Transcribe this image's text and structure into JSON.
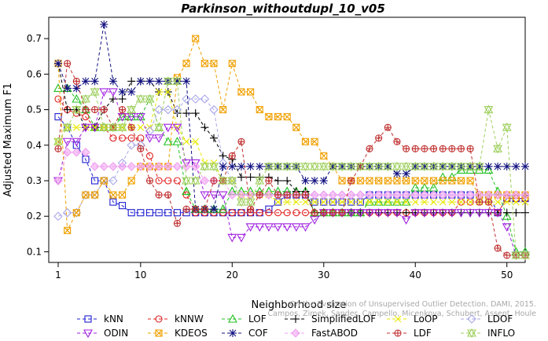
{
  "chart_data": {
    "type": "line",
    "title": "Parkinson_withoutdupl_10_v05",
    "xlabel": "Neighborhood size",
    "ylabel": "Adjusted Maximum F1",
    "xlim": [
      1,
      52
    ],
    "ylim": [
      0.07,
      0.76
    ],
    "xticks": [
      1,
      10,
      20,
      30,
      40,
      50
    ],
    "yticks": [
      0.1,
      0.2,
      0.3,
      0.4,
      0.5,
      0.6,
      0.7
    ],
    "grid": false,
    "legend_position": "bottom",
    "credit": "Campos, Zimek, Sander, Campello, Micenkova, Schubert, Assent, Houle",
    "credit_line2": "On the Evaluation of Unsupervised Outlier Detection. DAMI, 2015.",
    "x": [
      1,
      2,
      3,
      4,
      5,
      6,
      7,
      8,
      9,
      10,
      11,
      12,
      13,
      14,
      15,
      16,
      17,
      18,
      19,
      20,
      21,
      22,
      23,
      24,
      25,
      26,
      27,
      28,
      29,
      30,
      31,
      32,
      33,
      34,
      35,
      36,
      37,
      38,
      39,
      40,
      41,
      42,
      43,
      44,
      45,
      46,
      47,
      48,
      49,
      50,
      51,
      52
    ],
    "series": [
      {
        "name": "kNN",
        "color": "#1f1fd0",
        "marker": "square",
        "dash": "4,3",
        "values": [
          0.48,
          0.45,
          0.4,
          0.36,
          0.3,
          0.3,
          0.24,
          0.23,
          0.21,
          0.21,
          0.21,
          0.21,
          0.21,
          0.21,
          0.21,
          0.21,
          0.21,
          0.21,
          0.21,
          0.21,
          0.21,
          0.21,
          0.21,
          0.22,
          0.24,
          0.26,
          0.26,
          0.26,
          0.24,
          0.24,
          0.24,
          0.24,
          0.24,
          0.24,
          0.26,
          0.26,
          0.26,
          0.26,
          0.26,
          0.26,
          0.26,
          0.26,
          0.26,
          0.26,
          0.26,
          0.26,
          0.26,
          0.26,
          0.21,
          0.25,
          0.25,
          0.25
        ]
      },
      {
        "name": "kNNW",
        "color": "#e02020",
        "marker": "circle",
        "dash": "4,3",
        "values": [
          0.53,
          0.5,
          0.49,
          0.48,
          0.45,
          0.45,
          0.42,
          0.42,
          0.42,
          0.42,
          0.37,
          0.3,
          0.3,
          0.3,
          0.26,
          0.21,
          0.21,
          0.21,
          0.21,
          0.21,
          0.21,
          0.21,
          0.21,
          0.21,
          0.21,
          0.21,
          0.21,
          0.21,
          0.21,
          0.21,
          0.21,
          0.21,
          0.21,
          0.21,
          0.21,
          0.21,
          0.21,
          0.21,
          0.21,
          0.21,
          0.21,
          0.21,
          0.21,
          0.21,
          0.24,
          0.24,
          0.24,
          0.24,
          0.21,
          0.25,
          0.25,
          0.25
        ]
      },
      {
        "name": "LOF",
        "color": "#20c020",
        "marker": "triangle-up",
        "dash": "4,3",
        "values": [
          0.56,
          0.56,
          0.53,
          0.5,
          0.45,
          0.45,
          0.45,
          0.48,
          0.48,
          0.48,
          0.53,
          0.45,
          0.41,
          0.41,
          0.27,
          0.22,
          0.22,
          0.22,
          0.22,
          0.27,
          0.27,
          0.27,
          0.27,
          0.27,
          0.27,
          0.27,
          0.27,
          0.27,
          0.21,
          0.21,
          0.21,
          0.21,
          0.21,
          0.21,
          0.24,
          0.24,
          0.24,
          0.24,
          0.24,
          0.28,
          0.28,
          0.28,
          0.31,
          0.31,
          0.33,
          0.33,
          0.33,
          0.33,
          0.27,
          0.2,
          0.1,
          0.1
        ]
      },
      {
        "name": "SimplifiedLOF",
        "color": "#000000",
        "marker": "plus",
        "dash": "4,3",
        "values": [
          0.63,
          0.5,
          0.5,
          0.45,
          0.45,
          0.5,
          0.53,
          0.53,
          0.58,
          0.58,
          0.58,
          0.55,
          0.55,
          0.49,
          0.49,
          0.49,
          0.45,
          0.42,
          0.37,
          0.36,
          0.31,
          0.31,
          0.31,
          0.31,
          0.3,
          0.3,
          0.27,
          0.27,
          0.21,
          0.21,
          0.21,
          0.21,
          0.21,
          0.21,
          0.21,
          0.21,
          0.21,
          0.21,
          0.21,
          0.21,
          0.21,
          0.21,
          0.21,
          0.21,
          0.21,
          0.21,
          0.21,
          0.21,
          0.21,
          0.21,
          0.21,
          0.21
        ]
      },
      {
        "name": "LoOP",
        "color": "#e8e800",
        "marker": "x",
        "dash": "4,3",
        "values": [
          0.41,
          0.45,
          0.45,
          0.45,
          0.45,
          0.45,
          0.45,
          0.45,
          0.45,
          0.45,
          0.45,
          0.55,
          0.55,
          0.45,
          0.41,
          0.41,
          0.35,
          0.35,
          0.3,
          0.3,
          0.26,
          0.26,
          0.26,
          0.26,
          0.24,
          0.24,
          0.24,
          0.24,
          0.24,
          0.24,
          0.24,
          0.24,
          0.24,
          0.24,
          0.24,
          0.24,
          0.24,
          0.24,
          0.24,
          0.24,
          0.24,
          0.24,
          0.24,
          0.24,
          0.24,
          0.24,
          0.24,
          0.24,
          0.24,
          0.24,
          0.24,
          0.24
        ]
      },
      {
        "name": "LDOF",
        "color": "#a8a8e8",
        "marker": "diamond",
        "dash": "4,3",
        "values": [
          0.2,
          0.21,
          0.21,
          0.26,
          0.26,
          0.3,
          0.3,
          0.35,
          0.4,
          0.4,
          0.44,
          0.5,
          0.5,
          0.5,
          0.53,
          0.53,
          0.53,
          0.5,
          0.35,
          0.3,
          0.26,
          0.26,
          0.26,
          0.26,
          0.26,
          0.26,
          0.26,
          0.26,
          0.26,
          0.26,
          0.26,
          0.26,
          0.26,
          0.26,
          0.26,
          0.26,
          0.26,
          0.26,
          0.26,
          0.26,
          0.26,
          0.26,
          0.26,
          0.26,
          0.26,
          0.26,
          0.26,
          0.26,
          0.26,
          0.26,
          0.26,
          0.26
        ]
      },
      {
        "name": "ODIN",
        "color": "#a020e0",
        "marker": "triangle-down",
        "dash": "4,3",
        "values": [
          0.3,
          0.41,
          0.41,
          0.45,
          0.45,
          0.55,
          0.55,
          0.48,
          0.48,
          0.48,
          0.42,
          0.42,
          0.45,
          0.45,
          0.35,
          0.35,
          0.26,
          0.26,
          0.26,
          0.14,
          0.14,
          0.17,
          0.17,
          0.17,
          0.17,
          0.17,
          0.17,
          0.17,
          0.19,
          0.21,
          0.21,
          0.21,
          0.21,
          0.21,
          0.21,
          0.21,
          0.21,
          0.21,
          0.19,
          0.21,
          0.21,
          0.21,
          0.21,
          0.21,
          0.21,
          0.21,
          0.21,
          0.21,
          0.21,
          0.17,
          0.09,
          0.09
        ]
      },
      {
        "name": "KDEOS",
        "color": "#f0a000",
        "marker": "square-x",
        "dash": "4,3",
        "values": [
          0.63,
          0.16,
          0.21,
          0.26,
          0.26,
          0.3,
          0.26,
          0.26,
          0.3,
          0.34,
          0.34,
          0.34,
          0.34,
          0.59,
          0.63,
          0.7,
          0.63,
          0.63,
          0.5,
          0.63,
          0.55,
          0.55,
          0.5,
          0.48,
          0.48,
          0.48,
          0.45,
          0.41,
          0.41,
          0.37,
          0.34,
          0.3,
          0.3,
          0.3,
          0.3,
          0.3,
          0.3,
          0.3,
          0.3,
          0.3,
          0.3,
          0.3,
          0.3,
          0.3,
          0.3,
          0.3,
          0.26,
          0.26,
          0.26,
          0.26,
          0.26,
          0.26
        ]
      },
      {
        "name": "COF",
        "color": "#101080",
        "marker": "asterisk",
        "dash": "4,3",
        "values": [
          0.63,
          0.56,
          0.56,
          0.58,
          0.58,
          0.74,
          0.58,
          0.55,
          0.55,
          0.58,
          0.58,
          0.58,
          0.58,
          0.58,
          0.58,
          0.22,
          0.22,
          0.22,
          0.34,
          0.34,
          0.34,
          0.34,
          0.34,
          0.34,
          0.34,
          0.34,
          0.34,
          0.3,
          0.3,
          0.3,
          0.34,
          0.34,
          0.34,
          0.34,
          0.34,
          0.34,
          0.34,
          0.32,
          0.32,
          0.34,
          0.34,
          0.34,
          0.34,
          0.34,
          0.34,
          0.34,
          0.34,
          0.34,
          0.34,
          0.34,
          0.34,
          0.34
        ]
      },
      {
        "name": "FastABOD",
        "color": "#f0a0f0",
        "marker": "diamond-filled",
        "dash": "4,3",
        "values": [
          0.3,
          0.38,
          0.38,
          0.38,
          0.34,
          0.34,
          0.34,
          0.34,
          0.34,
          0.34,
          0.34,
          0.34,
          0.34,
          0.34,
          0.34,
          0.34,
          0.3,
          0.3,
          0.3,
          0.26,
          0.26,
          0.26,
          0.26,
          0.26,
          0.26,
          0.26,
          0.26,
          0.26,
          0.26,
          0.26,
          0.26,
          0.26,
          0.26,
          0.26,
          0.26,
          0.26,
          0.26,
          0.26,
          0.26,
          0.26,
          0.26,
          0.26,
          0.26,
          0.26,
          0.26,
          0.26,
          0.26,
          0.26,
          0.26,
          0.26,
          0.26,
          0.26
        ]
      },
      {
        "name": "LDF",
        "color": "#c03030",
        "marker": "circle-plus",
        "dash": "4,3",
        "values": [
          0.39,
          0.63,
          0.58,
          0.5,
          0.5,
          0.5,
          0.45,
          0.5,
          0.45,
          0.39,
          0.3,
          0.26,
          0.26,
          0.18,
          0.22,
          0.22,
          0.22,
          0.3,
          0.3,
          0.37,
          0.41,
          0.22,
          0.26,
          0.3,
          0.26,
          0.26,
          0.26,
          0.26,
          0.21,
          0.21,
          0.21,
          0.21,
          0.3,
          0.34,
          0.39,
          0.42,
          0.45,
          0.41,
          0.39,
          0.39,
          0.39,
          0.39,
          0.39,
          0.39,
          0.39,
          0.39,
          0.24,
          0.24,
          0.11,
          0.09,
          0.09,
          0.09
        ]
      },
      {
        "name": "INFLO",
        "color": "#a0d060",
        "marker": "star",
        "dash": "4,3",
        "values": [
          0.41,
          0.45,
          0.5,
          0.53,
          0.55,
          0.45,
          0.45,
          0.45,
          0.5,
          0.53,
          0.53,
          0.45,
          0.58,
          0.58,
          0.3,
          0.3,
          0.34,
          0.34,
          0.3,
          0.3,
          0.24,
          0.24,
          0.3,
          0.34,
          0.34,
          0.34,
          0.34,
          0.34,
          0.34,
          0.34,
          0.34,
          0.34,
          0.34,
          0.34,
          0.34,
          0.34,
          0.34,
          0.34,
          0.34,
          0.34,
          0.34,
          0.34,
          0.34,
          0.34,
          0.34,
          0.34,
          0.34,
          0.5,
          0.39,
          0.45,
          0.09,
          0.09
        ]
      }
    ]
  }
}
